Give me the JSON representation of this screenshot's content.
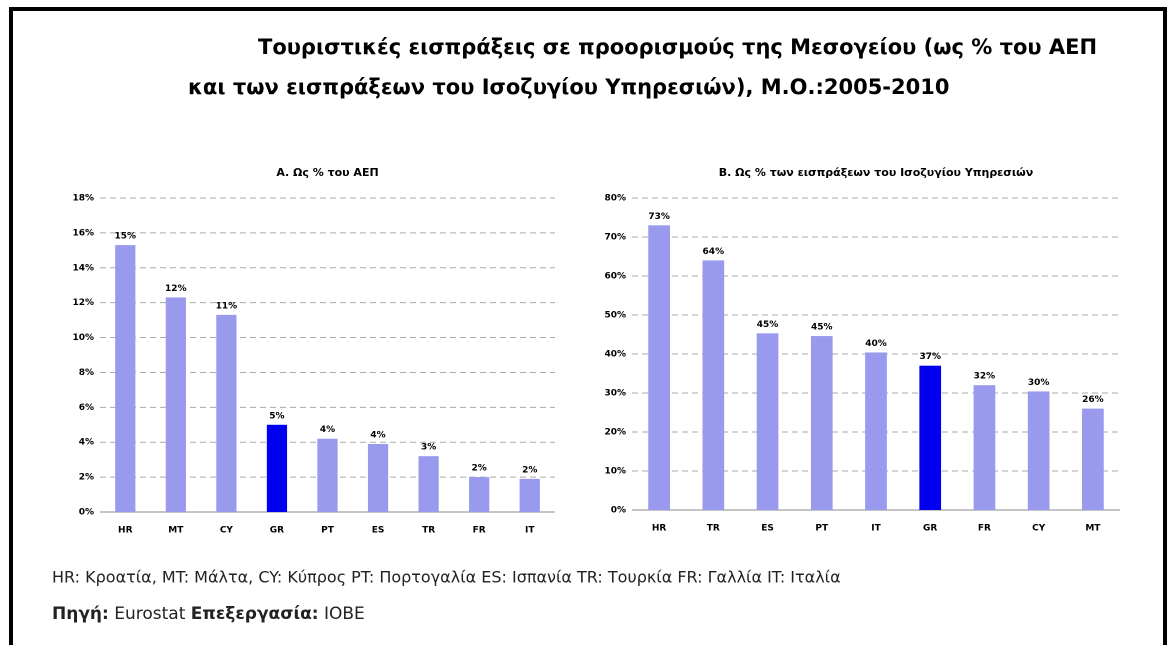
{
  "header": {
    "title_lines": [
      "Τουριστικές εισπράξεις σε προορισμούς της Μεσογείου (ως % του ΑΕΠ",
      "και των εισπράξεων του Ισοζυγίου Υπηρεσιών), Μ.Ο.:2005-2010"
    ]
  },
  "chart_data": [
    {
      "type": "bar",
      "title": "A. Ως % του ΑΕΠ",
      "categories": [
        "HR",
        "MT",
        "CY",
        "GR",
        "PT",
        "ES",
        "TR",
        "FR",
        "IT"
      ],
      "values": [
        15.3,
        12.3,
        11.3,
        5.0,
        4.2,
        3.9,
        3.2,
        2.0,
        1.9
      ],
      "value_labels": [
        "15%",
        "12%",
        "11%",
        "5%",
        "4%",
        "4%",
        "3%",
        "2%",
        "2%"
      ],
      "colors": [
        "#9999ee",
        "#9999ee",
        "#9999ee",
        "#0000ee",
        "#9999ee",
        "#9999ee",
        "#9999ee",
        "#9999ee",
        "#9999ee"
      ],
      "ylim": [
        0,
        18
      ],
      "yticks": [
        {
          "value": 0,
          "label": "0%"
        },
        {
          "value": 2,
          "label": "2%"
        },
        {
          "value": 4,
          "label": "4%"
        },
        {
          "value": 6,
          "label": "6%"
        },
        {
          "value": 8,
          "label": "8%"
        },
        {
          "value": 10,
          "label": "10%"
        },
        {
          "value": 12,
          "label": "12%"
        },
        {
          "value": 14,
          "label": "14%"
        },
        {
          "value": 16,
          "label": "16%"
        },
        {
          "value": 18,
          "label": "18%"
        }
      ],
      "grid": true
    },
    {
      "type": "bar",
      "title": "B. Ως % των εισπράξεων του Ισοζυγίου Υπηρεσιών",
      "categories": [
        "HR",
        "TR",
        "ES",
        "PT",
        "IT",
        "GR",
        "FR",
        "CY",
        "MT"
      ],
      "values": [
        73,
        64,
        45.3,
        44.6,
        40.4,
        37,
        32,
        30.4,
        26
      ],
      "value_labels": [
        "73%",
        "64%",
        "45%",
        "45%",
        "40%",
        "37%",
        "32%",
        "30%",
        "26%"
      ],
      "colors": [
        "#9999ee",
        "#9999ee",
        "#9999ee",
        "#9999ee",
        "#9999ee",
        "#0000ee",
        "#9999ee",
        "#9999ee",
        "#9999ee"
      ],
      "ylim": [
        0,
        80
      ],
      "yticks": [
        {
          "value": 0,
          "label": "0%"
        },
        {
          "value": 10,
          "label": "10%"
        },
        {
          "value": 20,
          "label": "20%"
        },
        {
          "value": 30,
          "label": "30%"
        },
        {
          "value": 40,
          "label": "40%"
        },
        {
          "value": 50,
          "label": "50%"
        },
        {
          "value": 60,
          "label": "60%"
        },
        {
          "value": 70,
          "label": "70%"
        },
        {
          "value": 80,
          "label": "80%"
        }
      ],
      "grid": true
    }
  ],
  "footer": {
    "legend_note": "HR: Κροατία, MT: Μάλτα, CY: Κύπρος PT: Πορτογαλία ES: Ισπανία TR: Τουρκία FR: Γαλλία IT: Ιταλία",
    "source_label": "Πηγή:",
    "source": "Eurostat",
    "processing_label": "Επεξεργασία:",
    "processing": "IOBE"
  }
}
